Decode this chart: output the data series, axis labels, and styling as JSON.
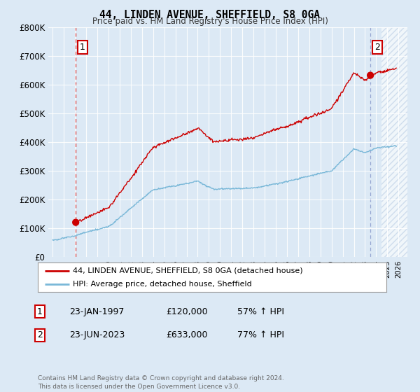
{
  "title": "44, LINDEN AVENUE, SHEFFIELD, S8 0GA",
  "subtitle": "Price paid vs. HM Land Registry's House Price Index (HPI)",
  "background_color": "#dce9f5",
  "plot_bg_color": "#dce9f5",
  "hpi_color": "#7ab8d8",
  "price_color": "#cc0000",
  "ylim": [
    0,
    800000
  ],
  "yticks": [
    0,
    100000,
    200000,
    300000,
    400000,
    500000,
    600000,
    700000,
    800000
  ],
  "ytick_labels": [
    "£0",
    "£100K",
    "£200K",
    "£300K",
    "£400K",
    "£500K",
    "£600K",
    "£700K",
    "£800K"
  ],
  "xlim_start": 1994.6,
  "xlim_end": 2026.8,
  "sale1_x": 1997.06,
  "sale1_y": 120000,
  "sale2_x": 2023.48,
  "sale2_y": 633000,
  "sale1_label": "1",
  "sale2_label": "2",
  "legend_line1": "44, LINDEN AVENUE, SHEFFIELD, S8 0GA (detached house)",
  "legend_line2": "HPI: Average price, detached house, Sheffield",
  "table_row1": [
    "1",
    "23-JAN-1997",
    "£120,000",
    "57% ↑ HPI"
  ],
  "table_row2": [
    "2",
    "23-JUN-2023",
    "£633,000",
    "77% ↑ HPI"
  ],
  "footer": "Contains HM Land Registry data © Crown copyright and database right 2024.\nThis data is licensed under the Open Government Licence v3.0.",
  "hatch_future_start": 2024.5,
  "dashed_line_color": "#cc0000",
  "dashed2_color": "#aaaacc"
}
